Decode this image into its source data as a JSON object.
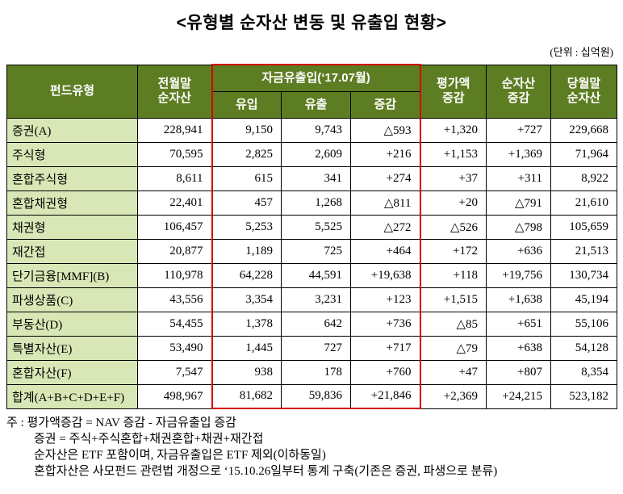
{
  "page": {
    "title": "<유형별 순자산 변동 및 유출입 현황>",
    "unit_note": "(단위 : 십억원)"
  },
  "table": {
    "header": {
      "fund_type": "펀드유형",
      "prev_month": "전월말\n순자산",
      "flow_group": "자금유출입(‘17.07월)",
      "inflow": "유입",
      "outflow": "유출",
      "change": "증감",
      "valuation_change": "평가액\n증감",
      "net_asset_change": "순자산\n증감",
      "current_month": "당월말\n순자산"
    },
    "rows": [
      {
        "label": "증권(A)",
        "cells": [
          "228,941",
          "9,150",
          "9,743",
          "△593",
          "+1,320",
          "+727",
          "229,668"
        ]
      },
      {
        "label": "주식형",
        "cells": [
          "70,595",
          "2,825",
          "2,609",
          "+216",
          "+1,153",
          "+1,369",
          "71,964"
        ]
      },
      {
        "label": "혼합주식형",
        "cells": [
          "8,611",
          "615",
          "341",
          "+274",
          "+37",
          "+311",
          "8,922"
        ]
      },
      {
        "label": "혼합채권형",
        "cells": [
          "22,401",
          "457",
          "1,268",
          "△811",
          "+20",
          "△791",
          "21,610"
        ]
      },
      {
        "label": "채권형",
        "cells": [
          "106,457",
          "5,253",
          "5,525",
          "△272",
          "△526",
          "△798",
          "105,659"
        ]
      },
      {
        "label": "재간접",
        "cells": [
          "20,877",
          "1,189",
          "725",
          "+464",
          "+172",
          "+636",
          "21,513"
        ]
      },
      {
        "label": "단기금융[MMF](B)",
        "cells": [
          "110,978",
          "64,228",
          "44,591",
          "+19,638",
          "+118",
          "+19,756",
          "130,734"
        ]
      },
      {
        "label": "파생상품(C)",
        "cells": [
          "43,556",
          "3,354",
          "3,231",
          "+123",
          "+1,515",
          "+1,638",
          "45,194"
        ]
      },
      {
        "label": "부동산(D)",
        "cells": [
          "54,455",
          "1,378",
          "642",
          "+736",
          "△85",
          "+651",
          "55,106"
        ]
      },
      {
        "label": "특별자산(E)",
        "cells": [
          "53,490",
          "1,445",
          "727",
          "+717",
          "△79",
          "+638",
          "54,128"
        ]
      },
      {
        "label": "혼합자산(F)",
        "cells": [
          "7,547",
          "938",
          "178",
          "+760",
          "+47",
          "+807",
          "8,354"
        ]
      },
      {
        "label": "합계(A+B+C+D+E+F)",
        "cells": [
          "498,967",
          "81,682",
          "59,836",
          "+21,846",
          "+2,369",
          "+24,215",
          "523,182"
        ]
      }
    ]
  },
  "notes": {
    "lines": [
      "주 : 평가액증감 = NAV 증감 - 자금유출입 증감",
      "증권 = 주식+주식혼합+채권혼합+채권+재간접",
      "순자산은 ETF 포함이며, 자금유출입은 ETF 제외(이하동일)",
      "혼합자산은 사모펀드 관련법 개정으로 ‘15.10.26일부터 통계 구축(기존은 증권, 파생으로 분류)"
    ]
  },
  "colors": {
    "header_bg": "#5d7d22",
    "row_label_bg": "#d8e7b5",
    "flow_border": "#d40000"
  }
}
